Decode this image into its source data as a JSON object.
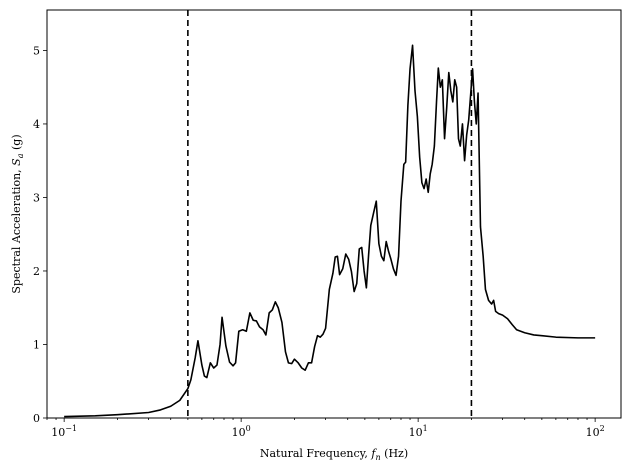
{
  "chart_data": {
    "type": "line",
    "title": "",
    "xlabel": "Natural Frequency, f_n (Hz)",
    "ylabel": "Spectral Acceleration, S_a (g)",
    "xlabel_parts": {
      "text": "Natural Frequency, ",
      "var": "f",
      "sub": "n",
      "unit": " (Hz)"
    },
    "ylabel_parts": {
      "text": "Spectral Acceleration, ",
      "var": "S",
      "sub": "a",
      "unit": " (g)"
    },
    "xscale": "log",
    "xlim": [
      0.08,
      140
    ],
    "ylim": [
      0,
      5.55
    ],
    "grid": false,
    "legend": "none",
    "xticks": [
      {
        "value": 0.1,
        "base": "10",
        "exp": "−1"
      },
      {
        "value": 1,
        "base": "10",
        "exp": "0"
      },
      {
        "value": 10,
        "base": "10",
        "exp": "1"
      },
      {
        "value": 100,
        "base": "10",
        "exp": "2"
      }
    ],
    "yticks": [
      {
        "value": 0,
        "label": "0"
      },
      {
        "value": 1,
        "label": "1"
      },
      {
        "value": 2,
        "label": "2"
      },
      {
        "value": 3,
        "label": "3"
      },
      {
        "value": 4,
        "label": "4"
      },
      {
        "value": 5,
        "label": "5"
      }
    ],
    "vlines": [
      {
        "x": 0.5,
        "style": "dashed"
      },
      {
        "x": 20,
        "style": "dashed"
      }
    ],
    "series": [
      {
        "color": "#000000",
        "points": [
          [
            0.1,
            0.02
          ],
          [
            0.15,
            0.03
          ],
          [
            0.2,
            0.045
          ],
          [
            0.3,
            0.075
          ],
          [
            0.35,
            0.11
          ],
          [
            0.4,
            0.16
          ],
          [
            0.45,
            0.24
          ],
          [
            0.5,
            0.4
          ],
          [
            0.52,
            0.52
          ],
          [
            0.55,
            0.82
          ],
          [
            0.57,
            1.05
          ],
          [
            0.6,
            0.72
          ],
          [
            0.62,
            0.57
          ],
          [
            0.64,
            0.55
          ],
          [
            0.67,
            0.75
          ],
          [
            0.7,
            0.68
          ],
          [
            0.73,
            0.72
          ],
          [
            0.76,
            1.0
          ],
          [
            0.78,
            1.37
          ],
          [
            0.82,
            0.98
          ],
          [
            0.86,
            0.76
          ],
          [
            0.9,
            0.71
          ],
          [
            0.93,
            0.75
          ],
          [
            0.97,
            1.18
          ],
          [
            1.02,
            1.2
          ],
          [
            1.07,
            1.18
          ],
          [
            1.12,
            1.43
          ],
          [
            1.17,
            1.33
          ],
          [
            1.22,
            1.32
          ],
          [
            1.27,
            1.24
          ],
          [
            1.33,
            1.2
          ],
          [
            1.38,
            1.13
          ],
          [
            1.44,
            1.43
          ],
          [
            1.5,
            1.47
          ],
          [
            1.56,
            1.58
          ],
          [
            1.62,
            1.5
          ],
          [
            1.7,
            1.3
          ],
          [
            1.78,
            0.9
          ],
          [
            1.85,
            0.75
          ],
          [
            1.93,
            0.74
          ],
          [
            2.0,
            0.8
          ],
          [
            2.1,
            0.75
          ],
          [
            2.2,
            0.68
          ],
          [
            2.3,
            0.65
          ],
          [
            2.4,
            0.75
          ],
          [
            2.5,
            0.75
          ],
          [
            2.6,
            0.97
          ],
          [
            2.7,
            1.12
          ],
          [
            2.8,
            1.1
          ],
          [
            2.9,
            1.14
          ],
          [
            3.0,
            1.22
          ],
          [
            3.15,
            1.75
          ],
          [
            3.3,
            1.97
          ],
          [
            3.4,
            2.19
          ],
          [
            3.5,
            2.2
          ],
          [
            3.6,
            1.95
          ],
          [
            3.75,
            2.03
          ],
          [
            3.9,
            2.23
          ],
          [
            4.05,
            2.16
          ],
          [
            4.2,
            1.99
          ],
          [
            4.35,
            1.72
          ],
          [
            4.5,
            1.83
          ],
          [
            4.65,
            2.3
          ],
          [
            4.8,
            2.32
          ],
          [
            4.95,
            2.0
          ],
          [
            5.1,
            1.77
          ],
          [
            5.25,
            2.22
          ],
          [
            5.4,
            2.62
          ],
          [
            5.6,
            2.79
          ],
          [
            5.8,
            2.95
          ],
          [
            6.0,
            2.37
          ],
          [
            6.2,
            2.2
          ],
          [
            6.4,
            2.14
          ],
          [
            6.6,
            2.4
          ],
          [
            6.8,
            2.27
          ],
          [
            7.0,
            2.17
          ],
          [
            7.25,
            2.03
          ],
          [
            7.5,
            1.94
          ],
          [
            7.75,
            2.2
          ],
          [
            8.0,
            2.95
          ],
          [
            8.3,
            3.45
          ],
          [
            8.5,
            3.48
          ],
          [
            8.75,
            4.25
          ],
          [
            9.0,
            4.75
          ],
          [
            9.3,
            5.07
          ],
          [
            9.6,
            4.45
          ],
          [
            9.9,
            4.1
          ],
          [
            10.2,
            3.55
          ],
          [
            10.5,
            3.2
          ],
          [
            10.8,
            3.12
          ],
          [
            11.1,
            3.25
          ],
          [
            11.4,
            3.07
          ],
          [
            11.7,
            3.32
          ],
          [
            12.0,
            3.45
          ],
          [
            12.35,
            3.7
          ],
          [
            12.7,
            4.3
          ],
          [
            13.0,
            4.76
          ],
          [
            13.35,
            4.5
          ],
          [
            13.7,
            4.6
          ],
          [
            14.1,
            3.8
          ],
          [
            14.5,
            4.22
          ],
          [
            14.9,
            4.7
          ],
          [
            15.3,
            4.45
          ],
          [
            15.7,
            4.3
          ],
          [
            16.1,
            4.6
          ],
          [
            16.5,
            4.5
          ],
          [
            16.9,
            3.8
          ],
          [
            17.3,
            3.7
          ],
          [
            17.8,
            4.0
          ],
          [
            18.3,
            3.5
          ],
          [
            18.8,
            3.85
          ],
          [
            19.3,
            4.05
          ],
          [
            19.8,
            4.4
          ],
          [
            20.3,
            4.75
          ],
          [
            20.8,
            4.3
          ],
          [
            21.3,
            4.0
          ],
          [
            21.8,
            4.42
          ],
          [
            22.5,
            2.6
          ],
          [
            23.3,
            2.2
          ],
          [
            24.0,
            1.75
          ],
          [
            25.0,
            1.6
          ],
          [
            26.0,
            1.55
          ],
          [
            26.7,
            1.6
          ],
          [
            27.4,
            1.45
          ],
          [
            28.5,
            1.42
          ],
          [
            30.0,
            1.4
          ],
          [
            32.0,
            1.35
          ],
          [
            34.0,
            1.27
          ],
          [
            36.0,
            1.2
          ],
          [
            40.0,
            1.16
          ],
          [
            45.0,
            1.13
          ],
          [
            50.0,
            1.12
          ],
          [
            60.0,
            1.1
          ],
          [
            80.0,
            1.09
          ],
          [
            100.0,
            1.09
          ]
        ]
      }
    ]
  }
}
